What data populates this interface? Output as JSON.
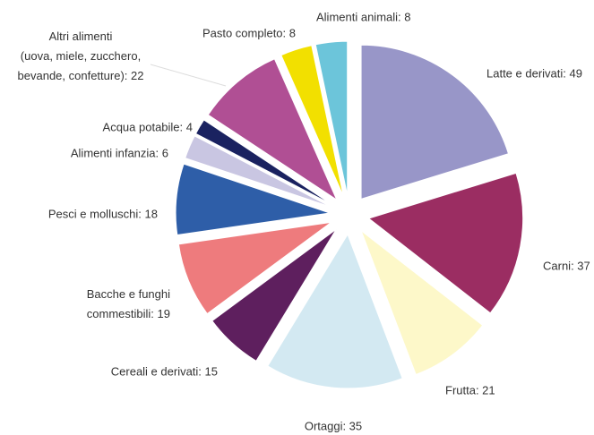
{
  "chart_data": {
    "type": "pie",
    "values": [
      49,
      37,
      21,
      35,
      15,
      19,
      18,
      6,
      4,
      22,
      8,
      8
    ],
    "value_labels": [
      "Latte e derivati: 49",
      "Carni: 37",
      "Frutta: 21",
      "Ortaggi: 35",
      "Cereali e derivati: 15",
      [
        "Bacche e funghi",
        "commestibili: 19"
      ],
      "Pesci e molluschi: 18",
      "Alimenti infanzia: 6",
      "Acqua potabile: 4",
      [
        "Altri alimenti",
        "(uova, miele, zucchero,",
        "bevande, confetture): 22"
      ],
      "Pasto completo: 8",
      "Alimenti animali: 8"
    ],
    "colors": [
      "#9896c8",
      "#9b2d62",
      "#fdf8c9",
      "#d3e9f2",
      "#5e1f5e",
      "#ee7b7d",
      "#2e5ea8",
      "#c9c6e2",
      "#1a2260",
      "#b04f94",
      "#f2e000",
      "#6cc5da"
    ]
  }
}
